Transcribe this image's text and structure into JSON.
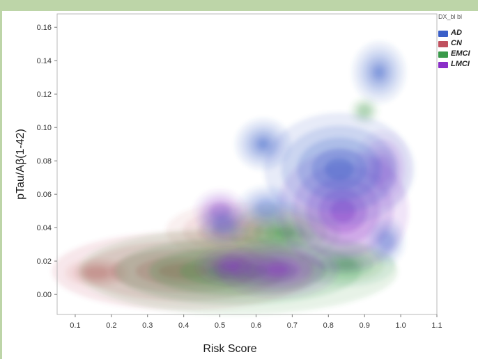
{
  "chart_data": {
    "type": "density-contour",
    "xlabel": "Risk Score",
    "ylabel": "pTau/Aβ(1-42)",
    "xlim": [
      0.05,
      1.1
    ],
    "ylim": [
      -0.012,
      0.168
    ],
    "x_ticks": [
      "0.1",
      "0.2",
      "0.3",
      "0.4",
      "0.5",
      "0.6",
      "0.7",
      "0.8",
      "0.9",
      "1.0",
      "1.1"
    ],
    "y_ticks": [
      "0.00",
      "0.02",
      "0.04",
      "0.06",
      "0.08",
      "0.10",
      "0.12",
      "0.14",
      "0.16"
    ],
    "grid": false,
    "legend": {
      "title": "DX_bl bl",
      "placement": "top-right",
      "entries": [
        {
          "name": "AD",
          "color": "#3a5fc8"
        },
        {
          "name": "CN",
          "color": "#c0505e"
        },
        {
          "name": "EMCI",
          "color": "#3a9a4a"
        },
        {
          "name": "LMCI",
          "color": "#8a2fc8"
        }
      ]
    },
    "series": [
      {
        "name": "CN",
        "color": "#c0505e",
        "modes": [
          {
            "x": 0.4,
            "y": 0.014,
            "sx": 0.14,
            "sy": 0.009,
            "w": 1.0
          },
          {
            "x": 0.16,
            "y": 0.013,
            "sx": 0.05,
            "sy": 0.005,
            "w": 0.45
          },
          {
            "x": 0.55,
            "y": 0.038,
            "sx": 0.14,
            "sy": 0.012,
            "w": 0.3
          }
        ]
      },
      {
        "name": "EMCI",
        "color": "#3a9a4a",
        "modes": [
          {
            "x": 0.55,
            "y": 0.014,
            "sx": 0.17,
            "sy": 0.01,
            "w": 1.0
          },
          {
            "x": 0.68,
            "y": 0.037,
            "sx": 0.07,
            "sy": 0.008,
            "w": 0.7
          },
          {
            "x": 0.85,
            "y": 0.018,
            "sx": 0.07,
            "sy": 0.007,
            "w": 0.55
          },
          {
            "x": 0.9,
            "y": 0.11,
            "sx": 0.04,
            "sy": 0.008,
            "w": 0.15
          }
        ]
      },
      {
        "name": "LMCI",
        "color": "#8a2fc8",
        "modes": [
          {
            "x": 0.84,
            "y": 0.05,
            "sx": 0.07,
            "sy": 0.014,
            "w": 1.0
          },
          {
            "x": 0.66,
            "y": 0.015,
            "sx": 0.07,
            "sy": 0.007,
            "w": 0.85
          },
          {
            "x": 0.53,
            "y": 0.017,
            "sx": 0.05,
            "sy": 0.006,
            "w": 0.55
          },
          {
            "x": 0.5,
            "y": 0.05,
            "sx": 0.05,
            "sy": 0.009,
            "w": 0.3
          },
          {
            "x": 0.95,
            "y": 0.075,
            "sx": 0.05,
            "sy": 0.015,
            "w": 0.35
          }
        ]
      },
      {
        "name": "AD",
        "color": "#3a5fc8",
        "modes": [
          {
            "x": 0.83,
            "y": 0.075,
            "sx": 0.08,
            "sy": 0.013,
            "w": 1.0
          },
          {
            "x": 0.62,
            "y": 0.09,
            "sx": 0.04,
            "sy": 0.008,
            "w": 0.55
          },
          {
            "x": 0.94,
            "y": 0.133,
            "sx": 0.04,
            "sy": 0.01,
            "w": 0.5
          },
          {
            "x": 0.51,
            "y": 0.042,
            "sx": 0.04,
            "sy": 0.007,
            "w": 0.45
          },
          {
            "x": 0.63,
            "y": 0.052,
            "sx": 0.05,
            "sy": 0.008,
            "w": 0.4
          },
          {
            "x": 0.96,
            "y": 0.032,
            "sx": 0.03,
            "sy": 0.008,
            "w": 0.45
          }
        ]
      }
    ]
  }
}
